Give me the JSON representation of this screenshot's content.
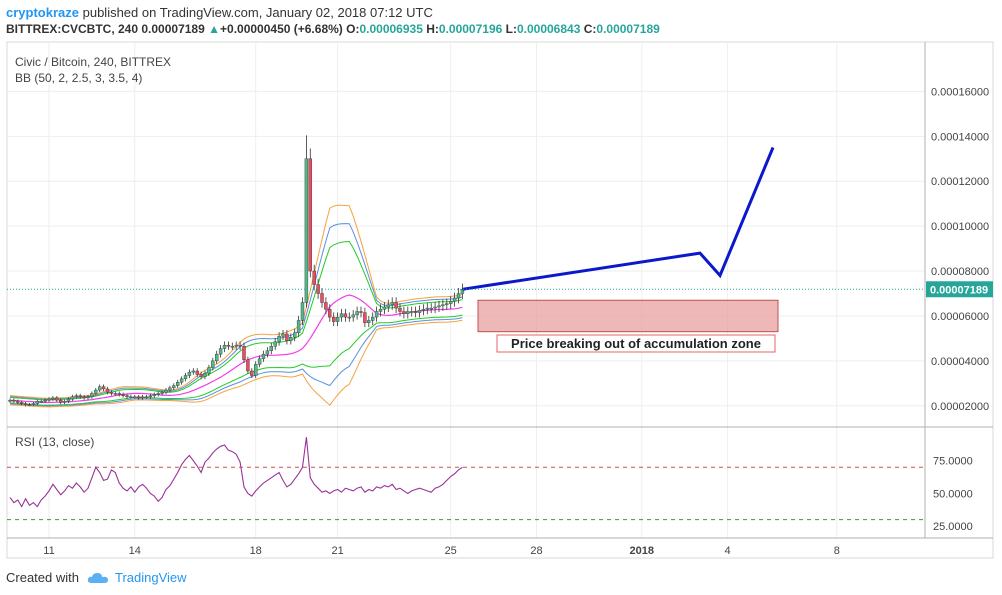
{
  "header": {
    "author": "cryptokraze",
    "published_text": "published on TradingView.com, January 02, 2018 07:12 UTC",
    "symbol_line": "BITTREX:CVCBTC, 240",
    "last_price": "0.00007189",
    "change_arrow": "▲",
    "change": "+0.00000450 (+6.68%)",
    "o_label": "O:",
    "o_value": "0.00006935",
    "h_label": "H:",
    "h_value": "0.00007196",
    "l_label": "L:",
    "l_value": "0.00006843",
    "c_label": "C:",
    "c_value": "0.00007189"
  },
  "legend": {
    "title": "Civic / Bitcoin, 240, BITTREX",
    "indicator": "BB (50, 2, 2.5, 3, 3.5, 4)",
    "rsi": "RSI (13, close)"
  },
  "annotation": "Price breaking out of accumulation zone",
  "footer": {
    "created_with": "Created with",
    "brand": "TradingView"
  },
  "colors": {
    "up": "#53b987",
    "down": "#eb4d5c",
    "bb_basis": "#f23ee8",
    "bb_green": "#22cc22",
    "bb_blue": "#5b8fe0",
    "bb_orange": "#f5a23c",
    "forecast": "#0b18cc",
    "rsi": "#993399",
    "zone_fill": "#e8a0a0",
    "price_label": "#26a69a",
    "accent": "#2196f3"
  },
  "chart_data": [
    {
      "type": "candlestick",
      "title": "Civic / Bitcoin, 240, BITTREX",
      "x_ticks": [
        "11",
        "14",
        "18",
        "21",
        "25",
        "28",
        "2018",
        "4",
        "8"
      ],
      "y_ticks": [
        "0.00002000",
        "0.00004000",
        "0.00006000",
        "0.00008000",
        "0.00010000",
        "0.00012000",
        "0.00014000",
        "0.00016000"
      ],
      "ylim": [
        1.1e-05,
        0.000182
      ],
      "last_price": "0.00007189",
      "accumulation_zone": {
        "low": 5.3e-05,
        "high": 6.7e-05
      },
      "forecast_path": [
        [
          6.95e-05,
          7.189e-05
        ],
        [
          8e-05,
          8.8e-05
        ],
        [
          0.00012,
          7.8e-05
        ],
        [
          0.0002,
          0.000135
        ]
      ],
      "price_series": [
        2.25e-05,
        2.2e-05,
        2.15e-05,
        2.1e-05,
        2.05e-05,
        2.05e-05,
        2.1e-05,
        2.2e-05,
        2.2e-05,
        2.25e-05,
        2.3e-05,
        2.35e-05,
        2.25e-05,
        2.15e-05,
        2.2e-05,
        2.3e-05,
        2.4e-05,
        2.45e-05,
        2.4e-05,
        2.35e-05,
        2.4e-05,
        2.55e-05,
        2.7e-05,
        2.85e-05,
        2.75e-05,
        2.6e-05,
        2.55e-05,
        2.55e-05,
        2.5e-05,
        2.45e-05,
        2.4e-05,
        2.4e-05,
        2.4e-05,
        2.35e-05,
        2.4e-05,
        2.4e-05,
        2.45e-05,
        2.5e-05,
        2.55e-05,
        2.6e-05,
        2.7e-05,
        2.8e-05,
        2.9e-05,
        3.05e-05,
        3.2e-05,
        3.35e-05,
        3.5e-05,
        3.55e-05,
        3.4e-05,
        3.3e-05,
        3.45e-05,
        3.7e-05,
        4e-05,
        4.3e-05,
        4.55e-05,
        4.7e-05,
        4.65e-05,
        4.65e-05,
        4.7e-05,
        4.65e-05,
        4.05e-05,
        3.55e-05,
        3.35e-05,
        3.85e-05,
        4.1e-05,
        4.3e-05,
        4.45e-05,
        4.65e-05,
        4.85e-05,
        5.1e-05,
        5.2e-05,
        4.9e-05,
        5.05e-05,
        5.25e-05,
        5.8e-05,
        6.6e-05,
        0.00013,
        8e-05,
        7.4e-05,
        7e-05,
        6.6e-05,
        6.3e-05,
        5.95e-05,
        5.75e-05,
        5.95e-05,
        6.1e-05,
        5.95e-05,
        5.95e-05,
        6.05e-05,
        6.2e-05,
        6.15e-05,
        5.7e-05,
        5.8e-05,
        5.95e-05,
        6.2e-05,
        6.3e-05,
        6.4e-05,
        6.5e-05,
        6.6e-05,
        6.35e-05,
        6.2e-05,
        6.1e-05,
        6.2e-05,
        6.2e-05,
        6.15e-05,
        6.25e-05,
        6.3e-05,
        6.35e-05,
        6.35e-05,
        6.4e-05,
        6.45e-05,
        6.5e-05,
        6.55e-05,
        6.65e-05,
        6.8e-05,
        7e-05,
        7.189e-05
      ]
    },
    {
      "type": "line",
      "title": "RSI (13, close)",
      "y_ticks": [
        "25.0000",
        "50.0000",
        "75.0000"
      ],
      "ylim": [
        16,
        100
      ],
      "levels": [
        30,
        70
      ],
      "values": [
        47,
        43,
        45,
        40,
        46,
        41,
        43,
        40,
        45,
        48,
        52,
        57,
        53,
        49,
        52,
        56,
        54,
        58,
        55,
        51,
        54,
        62,
        70,
        66,
        60,
        61,
        68,
        66,
        58,
        54,
        52,
        55,
        51,
        55,
        57,
        54,
        50,
        48,
        44,
        47,
        53,
        56,
        61,
        66,
        72,
        76,
        79,
        75,
        71,
        66,
        74,
        77,
        81,
        84,
        86,
        87,
        83,
        82,
        80,
        74,
        55,
        50,
        48,
        52,
        55,
        58,
        60,
        62,
        64,
        66,
        60,
        55,
        57,
        61,
        65,
        70,
        93,
        62,
        57,
        54,
        51,
        52,
        50,
        52,
        53,
        51,
        54,
        53,
        52,
        54,
        55,
        51,
        53,
        52,
        55,
        54,
        56,
        55,
        57,
        53,
        54,
        52,
        50,
        52,
        53,
        54,
        53,
        52,
        51,
        54,
        55,
        57,
        60,
        63,
        65,
        68,
        70
      ]
    }
  ]
}
